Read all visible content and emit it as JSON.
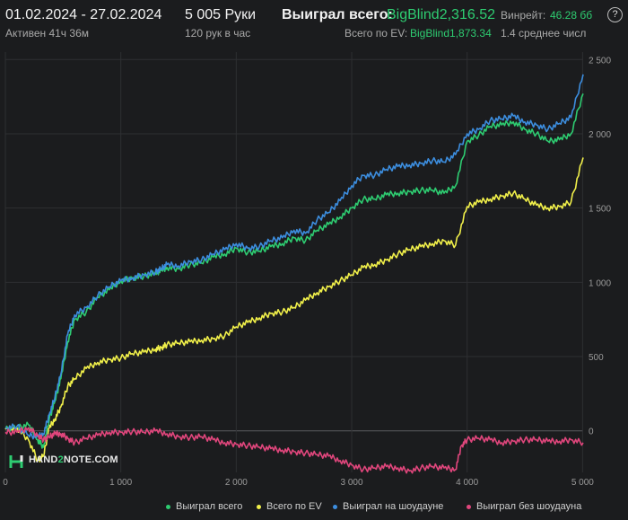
{
  "header": {
    "date_range": "01.02.2024 - 27.02.2024",
    "active": "Активен 41ч 36м",
    "hands": "5 005 Руки",
    "hands_per_hour": "120 рук в час",
    "won_total_label": "Выиграл всего:",
    "won_total_value": "BigBlind2,316.52",
    "ev_label": "Всего по EV:",
    "ev_value": "BigBlind1,873.34",
    "winrate_label": "Винрейт:",
    "winrate_value": "46.28 бб",
    "winrate_sub": "1.4 среднее числ"
  },
  "logo": {
    "prefix": "HAND",
    "mid": "2",
    "suffix": "NOTE.COM"
  },
  "colors": {
    "won_total": "#2ecc71",
    "ev": "#f1f04a",
    "showdown": "#3c8dde",
    "non_showdown": "#e0467c"
  },
  "chart_data": {
    "type": "line",
    "xlim": [
      0,
      5005
    ],
    "ylim": [
      -280,
      2550
    ],
    "x_ticks": [
      0,
      1000,
      2000,
      3000,
      4000,
      5000
    ],
    "x_tick_labels": [
      "0",
      "1 000",
      "2 000",
      "3 000",
      "4 000",
      "5 000"
    ],
    "y_ticks": [
      0,
      500,
      1000,
      1500,
      2000,
      2500
    ],
    "y_tick_labels": [
      "0",
      "500",
      "1 000",
      "1 500",
      "2 000",
      "2 500"
    ],
    "grid": true,
    "legend_position": "bottom",
    "series": [
      {
        "name": "Выиграл всего",
        "color": "#2ecc71",
        "x": [
          0,
          100,
          200,
          280,
          330,
          380,
          430,
          480,
          540,
          600,
          700,
          800,
          900,
          1000,
          1100,
          1200,
          1300,
          1350,
          1400,
          1500,
          1600,
          1700,
          1800,
          1900,
          2000,
          2100,
          2200,
          2300,
          2400,
          2500,
          2600,
          2700,
          2800,
          2900,
          3000,
          3100,
          3200,
          3300,
          3400,
          3500,
          3600,
          3700,
          3800,
          3900,
          4000,
          4100,
          4200,
          4300,
          4400,
          4500,
          4600,
          4700,
          4800,
          4900,
          5005
        ],
        "y": [
          10,
          20,
          40,
          -60,
          -110,
          80,
          200,
          350,
          600,
          750,
          800,
          900,
          950,
          1010,
          1030,
          1040,
          1060,
          1080,
          1100,
          1090,
          1120,
          1130,
          1170,
          1190,
          1230,
          1200,
          1210,
          1240,
          1260,
          1300,
          1280,
          1350,
          1390,
          1440,
          1500,
          1560,
          1560,
          1590,
          1600,
          1610,
          1620,
          1620,
          1600,
          1650,
          1950,
          1990,
          2050,
          2060,
          2080,
          2030,
          2000,
          1950,
          1960,
          2000,
          2270
        ]
      },
      {
        "name": "Всего по EV",
        "color": "#f1f04a",
        "x": [
          0,
          100,
          200,
          280,
          330,
          380,
          430,
          480,
          540,
          600,
          700,
          800,
          900,
          1000,
          1100,
          1200,
          1300,
          1350,
          1400,
          1500,
          1600,
          1700,
          1800,
          1900,
          2000,
          2100,
          2200,
          2300,
          2400,
          2500,
          2600,
          2700,
          2800,
          2900,
          3000,
          3100,
          3200,
          3300,
          3400,
          3500,
          3600,
          3700,
          3800,
          3900,
          4000,
          4100,
          4200,
          4300,
          4400,
          4500,
          4600,
          4700,
          4800,
          4900,
          5005
        ],
        "y": [
          10,
          20,
          -60,
          -200,
          -170,
          20,
          80,
          160,
          300,
          350,
          420,
          460,
          480,
          490,
          520,
          530,
          550,
          560,
          580,
          590,
          600,
          610,
          620,
          640,
          700,
          730,
          760,
          790,
          800,
          830,
          880,
          930,
          970,
          1010,
          1050,
          1100,
          1120,
          1150,
          1190,
          1220,
          1240,
          1260,
          1280,
          1250,
          1510,
          1540,
          1560,
          1580,
          1600,
          1560,
          1520,
          1500,
          1510,
          1540,
          1840
        ]
      },
      {
        "name": "Выиграл на шоудауне",
        "color": "#3c8dde",
        "x": [
          0,
          100,
          200,
          280,
          330,
          380,
          430,
          480,
          540,
          600,
          700,
          800,
          900,
          1000,
          1100,
          1200,
          1300,
          1350,
          1400,
          1500,
          1600,
          1700,
          1800,
          1900,
          2000,
          2100,
          2200,
          2300,
          2400,
          2500,
          2600,
          2700,
          2800,
          2900,
          3000,
          3100,
          3200,
          3300,
          3400,
          3500,
          3600,
          3700,
          3800,
          3900,
          4000,
          4100,
          4200,
          4300,
          4400,
          4500,
          4600,
          4700,
          4800,
          4900,
          5005
        ],
        "y": [
          20,
          30,
          -30,
          -40,
          -20,
          110,
          230,
          380,
          650,
          780,
          830,
          910,
          970,
          1010,
          1030,
          1050,
          1070,
          1090,
          1120,
          1110,
          1140,
          1150,
          1190,
          1220,
          1260,
          1230,
          1240,
          1280,
          1300,
          1350,
          1330,
          1420,
          1470,
          1550,
          1650,
          1720,
          1720,
          1760,
          1780,
          1790,
          1800,
          1820,
          1810,
          1860,
          2000,
          2030,
          2090,
          2100,
          2120,
          2080,
          2060,
          2030,
          2070,
          2110,
          2400
        ]
      },
      {
        "name": "Выиграл без шоудауна",
        "color": "#e0467c",
        "x": [
          0,
          100,
          200,
          280,
          330,
          380,
          430,
          480,
          540,
          600,
          700,
          800,
          900,
          1000,
          1100,
          1200,
          1300,
          1400,
          1500,
          1600,
          1700,
          1800,
          1900,
          2000,
          2100,
          2200,
          2300,
          2400,
          2500,
          2600,
          2700,
          2800,
          2900,
          3000,
          3100,
          3200,
          3300,
          3400,
          3500,
          3600,
          3700,
          3800,
          3900,
          3950,
          4000,
          4100,
          4200,
          4300,
          4400,
          4500,
          4600,
          4700,
          4800,
          4900,
          5005
        ],
        "y": [
          -10,
          -10,
          20,
          -30,
          -60,
          -40,
          -20,
          -20,
          -50,
          -80,
          -50,
          -30,
          -10,
          -10,
          -5,
          -10,
          0,
          -20,
          -40,
          -45,
          -40,
          -60,
          -80,
          -90,
          -100,
          -110,
          -120,
          -130,
          -140,
          -150,
          -160,
          -170,
          -200,
          -230,
          -260,
          -250,
          -240,
          -250,
          -270,
          -250,
          -240,
          -250,
          -260,
          -100,
          -60,
          -50,
          -60,
          -80,
          -70,
          -60,
          -60,
          -70,
          -70,
          -60,
          -80
        ]
      }
    ]
  }
}
